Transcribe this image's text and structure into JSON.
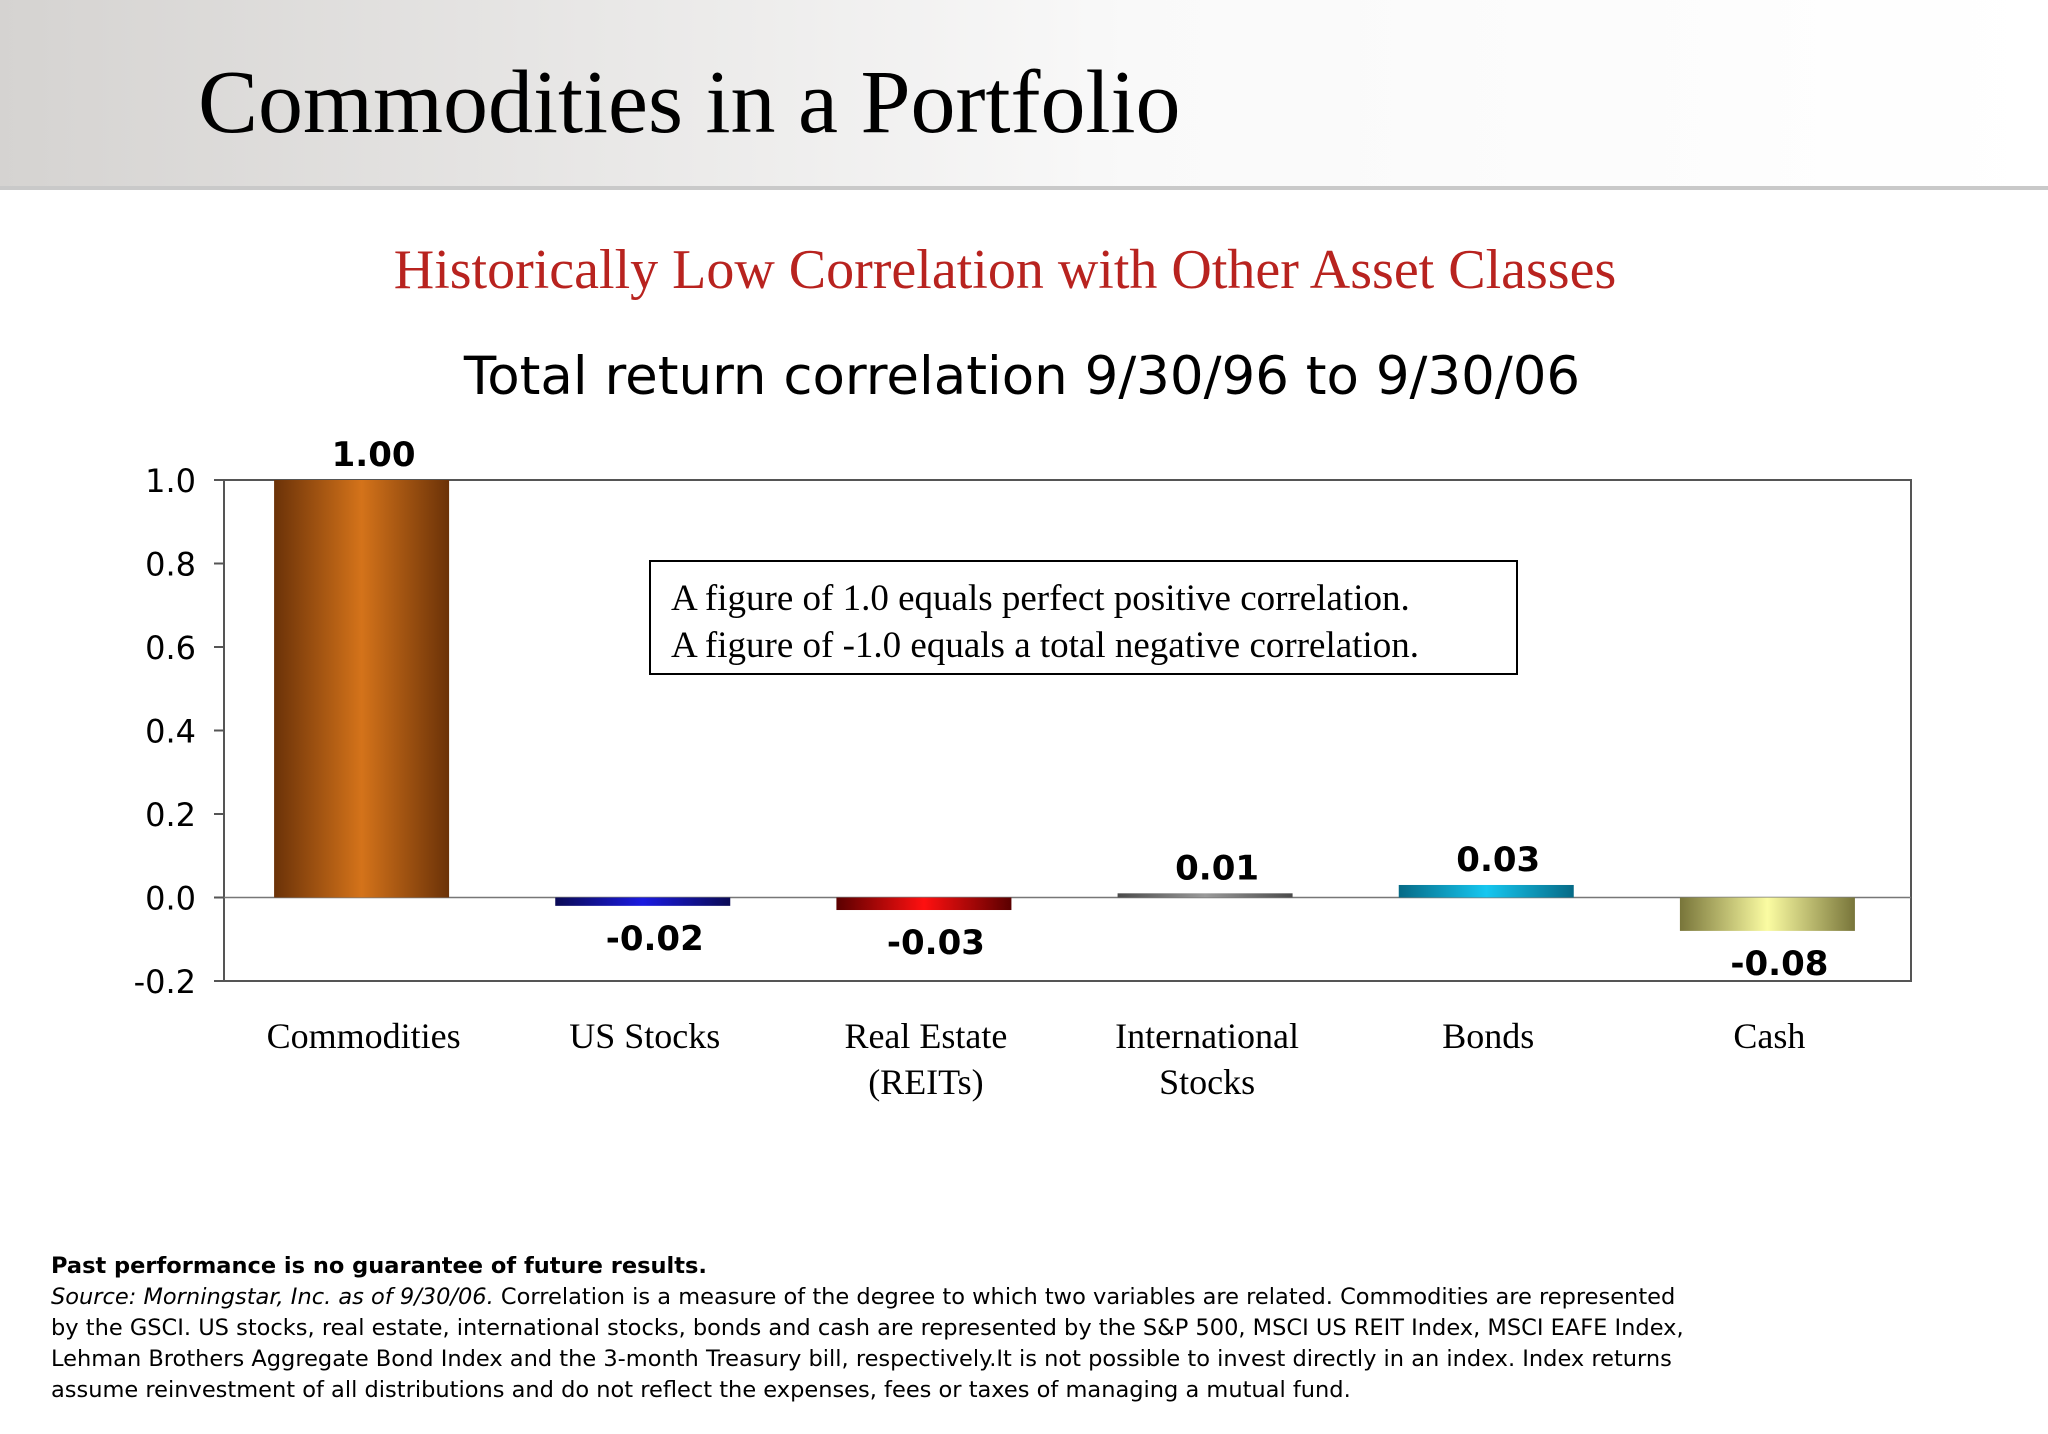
{
  "header": {
    "title": "Commodities in a Portfolio"
  },
  "subtitle": "Historically Low Correlation with Other Asset Classes",
  "note": {
    "line1": "A figure of 1.0 equals perfect positive correlation.",
    "line2": "A figure of -1.0 equals a total negative correlation."
  },
  "chart_data": {
    "type": "bar",
    "title": "Total return correlation 9/30/96 to 9/30/06",
    "xlabel": "",
    "ylabel": "",
    "categories": [
      [
        "Commodities"
      ],
      [
        "US Stocks"
      ],
      [
        "Real Estate",
        "(REITs)"
      ],
      [
        "International",
        "Stocks"
      ],
      [
        "Bonds"
      ],
      [
        "Cash"
      ]
    ],
    "values": [
      1.0,
      -0.02,
      -0.03,
      0.01,
      0.03,
      -0.08
    ],
    "value_labels": [
      "1.00",
      "-0.02",
      "-0.03",
      "0.01",
      "0.03",
      "-0.08"
    ],
    "ylim": [
      -0.2,
      1.0
    ],
    "yticks": [
      1.0,
      0.8,
      0.6,
      0.4,
      0.2,
      0.0,
      -0.2
    ],
    "ytick_labels": [
      "1.0",
      "0.8",
      "0.6",
      "0.4",
      "0.2",
      "0.0",
      "-0.2"
    ],
    "grid": false,
    "legend": "none",
    "bar_colors": [
      [
        "#6b3208",
        "#d4731a",
        "#6b3208"
      ],
      [
        "#0a0a55",
        "#1a1ae0",
        "#0a0a55"
      ],
      [
        "#5a0000",
        "#ff1010",
        "#5a0000"
      ],
      [
        "#4a4a4a",
        "#9a9a9a",
        "#4a4a4a"
      ],
      [
        "#066a86",
        "#16c7f0",
        "#066a86"
      ],
      [
        "#78753a",
        "#fbfca2",
        "#78753a"
      ]
    ]
  },
  "footer": {
    "disclaimer": "Past performance is no guarantee of future results.",
    "source_lead": "Source: Morningstar, Inc. as of 9/30/06.",
    "line1_rest": " Correlation is a measure of the degree to which two variables are related. Commodities are represented",
    "line2": "by the GSCI. US stocks, real estate, international stocks, bonds and cash are represented by the S&P 500, MSCI US REIT Index, MSCI EAFE Index,",
    "line3": "Lehman Brothers Aggregate Bond Index and the 3-month Treasury bill, respectively.It is not possible to invest directly in an index. Index returns",
    "line4": "assume reinvestment of all distributions and do not reflect the expenses, fees or taxes of managing a mutual fund."
  }
}
